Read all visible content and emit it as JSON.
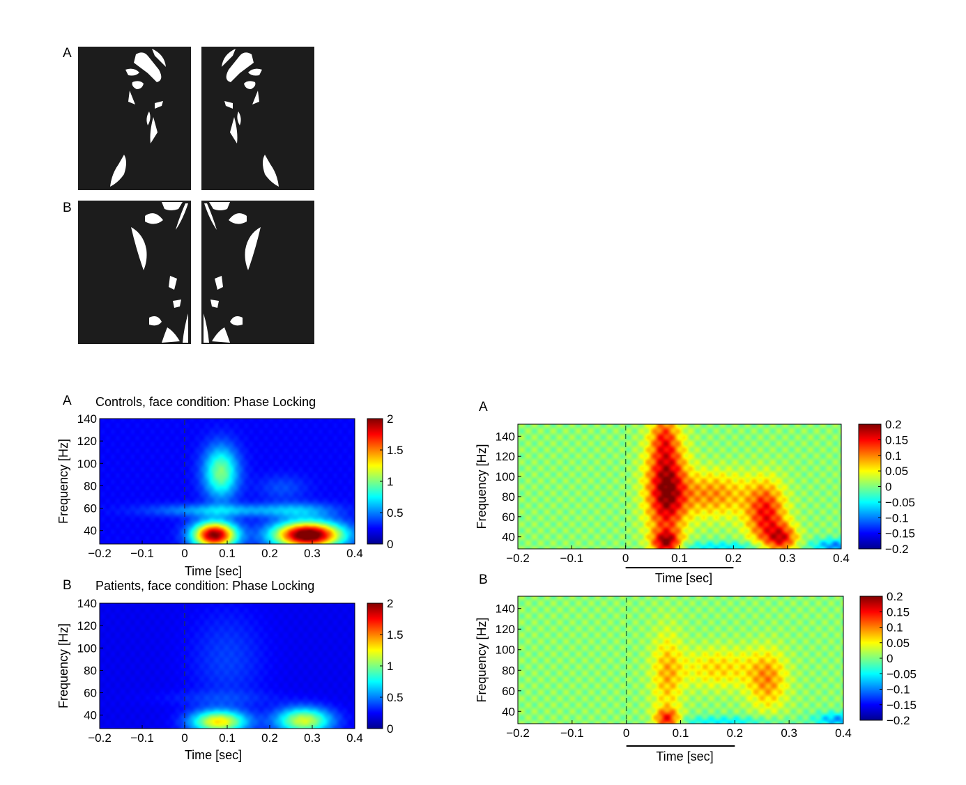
{
  "stimuli": {
    "rows": [
      {
        "label": "A",
        "description": "Mooney face stimuli, upright (pair: left-facing and right-facing)"
      },
      {
        "label": "B",
        "description": "Mooney face stimuli, inverted (pair: left-facing and right-facing)"
      }
    ],
    "colors": {
      "background": "#1c1c1c",
      "figure": "#ffffff"
    }
  },
  "chart_data": [
    {
      "id": "controls-phase-locking",
      "panel_label": "A",
      "type": "heatmap",
      "title": "Controls, face condition: Phase Locking",
      "xlabel": "Time [sec]",
      "ylabel": "Frequency [Hz]",
      "xlim": [
        -0.2,
        0.4
      ],
      "ylim": [
        28,
        140
      ],
      "xticks": [
        "-0.2",
        "-0.1",
        "0",
        "0.1",
        "0.2",
        "0.3",
        "0.4"
      ],
      "xtick_values": [
        -0.2,
        -0.1,
        0,
        0.1,
        0.2,
        0.3,
        0.4
      ],
      "yticks": [
        "40",
        "60",
        "80",
        "100",
        "120",
        "140"
      ],
      "ytick_values": [
        40,
        60,
        80,
        100,
        120,
        140
      ],
      "colorbar": {
        "min": 0,
        "max": 2,
        "ticks": [
          "0",
          "0.5",
          "1",
          "1.5",
          "2"
        ],
        "tick_values": [
          0,
          0.5,
          1,
          1.5,
          2
        ],
        "colormap": "jet"
      },
      "stimulus_onset": 0,
      "background_value": 0.25,
      "blobs": [
        {
          "t": 0.085,
          "f": 92,
          "st": 0.028,
          "sf": 16,
          "v": 0.75
        },
        {
          "t": 0.07,
          "f": 36,
          "st": 0.035,
          "sf": 8,
          "v": 1.75
        },
        {
          "t": 0.08,
          "f": 58,
          "st": 0.11,
          "sf": 4,
          "v": 0.35
        },
        {
          "t": 0.27,
          "f": 58,
          "st": 0.06,
          "sf": 5,
          "v": 0.3
        },
        {
          "t": 0.29,
          "f": 36,
          "st": 0.055,
          "sf": 8,
          "v": 1.95
        },
        {
          "t": 0.23,
          "f": 78,
          "st": 0.04,
          "sf": 8,
          "v": 0.15
        }
      ]
    },
    {
      "id": "patients-phase-locking",
      "panel_label": "B",
      "type": "heatmap",
      "title": "Patients, face condition: Phase Locking",
      "xlabel": "Time [sec]",
      "ylabel": "Frequency [Hz]",
      "xlim": [
        -0.2,
        0.4
      ],
      "ylim": [
        28,
        140
      ],
      "xticks": [
        "-0.2",
        "-0.1",
        "0",
        "0.1",
        "0.2",
        "0.3",
        "0.4"
      ],
      "xtick_values": [
        -0.2,
        -0.1,
        0,
        0.1,
        0.2,
        0.3,
        0.4
      ],
      "yticks": [
        "40",
        "60",
        "80",
        "100",
        "120",
        "140"
      ],
      "ytick_values": [
        40,
        60,
        80,
        100,
        120,
        140
      ],
      "colorbar": {
        "min": 0,
        "max": 2,
        "ticks": [
          "0",
          "0.5",
          "1",
          "1.5",
          "2"
        ],
        "tick_values": [
          0,
          0.5,
          1,
          1.5,
          2
        ],
        "colormap": "jet"
      },
      "stimulus_onset": 0,
      "background_value": 0.22,
      "blobs": [
        {
          "t": 0.08,
          "f": 34,
          "st": 0.045,
          "sf": 7,
          "v": 1.05
        },
        {
          "t": 0.28,
          "f": 35,
          "st": 0.045,
          "sf": 8,
          "v": 0.95
        },
        {
          "t": 0.1,
          "f": 90,
          "st": 0.06,
          "sf": 30,
          "v": 0.15
        },
        {
          "t": 0.08,
          "f": 55,
          "st": 0.1,
          "sf": 5,
          "v": 0.1
        }
      ]
    },
    {
      "id": "power-change-a",
      "panel_label": "A",
      "type": "heatmap",
      "title": "",
      "xlabel": "Time [sec]",
      "ylabel": "Frequency [Hz]",
      "xlim": [
        -0.2,
        0.4
      ],
      "ylim": [
        28,
        152
      ],
      "xticks": [
        "-0.2",
        "-0.1",
        "0",
        "0.1",
        "0.2",
        "0.3",
        "0.4"
      ],
      "xtick_values": [
        -0.2,
        -0.1,
        0,
        0.1,
        0.2,
        0.3,
        0.4
      ],
      "yticks": [
        "40",
        "60",
        "80",
        "100",
        "120",
        "140"
      ],
      "ytick_values": [
        40,
        60,
        80,
        100,
        120,
        140
      ],
      "colorbar": {
        "min": -0.2,
        "max": 0.2,
        "ticks": [
          "0.2",
          "0.15",
          "0.1",
          "0.05",
          "0",
          "−0.05",
          "−0.1",
          "−0.15",
          "−0.2"
        ],
        "tick_values": [
          0.2,
          0.15,
          0.1,
          0.05,
          0,
          -0.05,
          -0.1,
          -0.15,
          -0.2
        ],
        "colormap": "jet"
      },
      "stimulus_onset": 0,
      "time_window": [
        0,
        0.2
      ],
      "background_value": 0.005,
      "blobs": [
        {
          "t": 0.075,
          "f": 90,
          "st": 0.025,
          "sf": 38,
          "v": 0.185
        },
        {
          "t": 0.075,
          "f": 34,
          "st": 0.018,
          "sf": 8,
          "v": 0.14
        },
        {
          "t": 0.07,
          "f": 140,
          "st": 0.015,
          "sf": 15,
          "v": 0.06
        },
        {
          "t": 0.16,
          "f": 82,
          "st": 0.05,
          "sf": 16,
          "v": 0.09
        },
        {
          "t": 0.26,
          "f": 62,
          "st": 0.025,
          "sf": 22,
          "v": 0.14
        },
        {
          "t": 0.29,
          "f": 38,
          "st": 0.02,
          "sf": 10,
          "v": 0.13
        },
        {
          "t": 0.18,
          "f": 30,
          "st": 0.07,
          "sf": 4,
          "v": -0.06
        },
        {
          "t": 0.39,
          "f": 31,
          "st": 0.03,
          "sf": 5,
          "v": -0.1
        }
      ]
    },
    {
      "id": "power-change-b",
      "panel_label": "B",
      "type": "heatmap",
      "title": "",
      "xlabel": "Time [sec]",
      "ylabel": "Frequency [Hz]",
      "xlim": [
        -0.2,
        0.4
      ],
      "ylim": [
        28,
        152
      ],
      "xticks": [
        "-0.2",
        "-0.1",
        "0",
        "0.1",
        "0.2",
        "0.3",
        "0.4"
      ],
      "xtick_values": [
        -0.2,
        -0.1,
        0,
        0.1,
        0.2,
        0.3,
        0.4
      ],
      "yticks": [
        "40",
        "60",
        "80",
        "100",
        "120",
        "140"
      ],
      "ytick_values": [
        40,
        60,
        80,
        100,
        120,
        140
      ],
      "colorbar": {
        "min": -0.2,
        "max": 0.2,
        "ticks": [
          "0.2",
          "0.15",
          "0.1",
          "0.05",
          "0",
          "−0.05",
          "−0.1",
          "−0.15",
          "−0.2"
        ],
        "tick_values": [
          0.2,
          0.15,
          0.1,
          0.05,
          0,
          -0.05,
          -0.1,
          -0.15,
          -0.2
        ],
        "colormap": "jet"
      },
      "stimulus_onset": 0,
      "time_window": [
        0,
        0.2
      ],
      "background_value": 0.005,
      "blobs": [
        {
          "t": 0.075,
          "f": 75,
          "st": 0.02,
          "sf": 30,
          "v": 0.07
        },
        {
          "t": 0.075,
          "f": 32,
          "st": 0.016,
          "sf": 7,
          "v": 0.13
        },
        {
          "t": 0.17,
          "f": 82,
          "st": 0.05,
          "sf": 14,
          "v": 0.06
        },
        {
          "t": 0.26,
          "f": 70,
          "st": 0.025,
          "sf": 20,
          "v": 0.085
        },
        {
          "t": 0.18,
          "f": 30,
          "st": 0.07,
          "sf": 4,
          "v": -0.055
        },
        {
          "t": 0.39,
          "f": 32,
          "st": 0.03,
          "sf": 5,
          "v": -0.09
        }
      ]
    }
  ]
}
